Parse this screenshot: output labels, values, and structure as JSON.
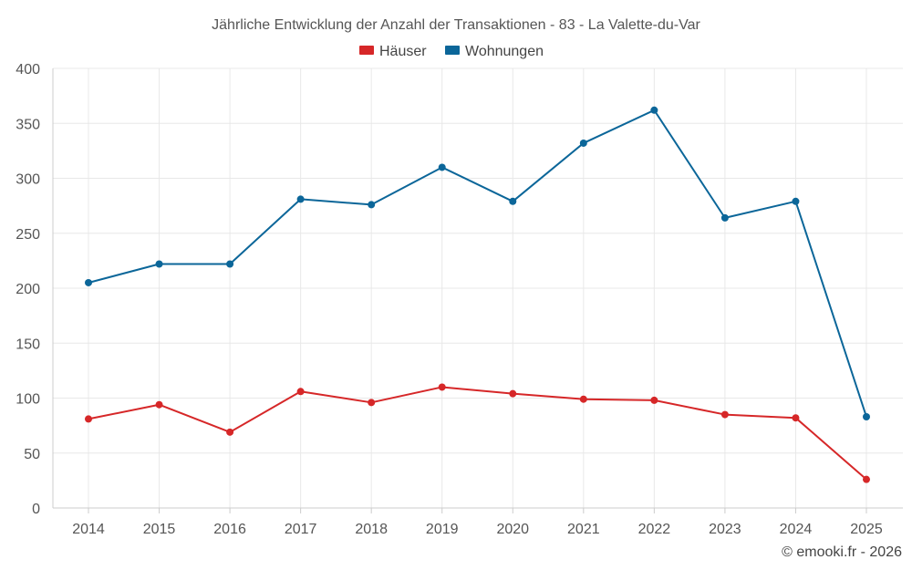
{
  "chart_data": {
    "type": "line",
    "title": "Jährliche Entwicklung der Anzahl der Transaktionen - 83 - La Valette-du-Var",
    "categories": [
      "2014",
      "2015",
      "2016",
      "2017",
      "2018",
      "2019",
      "2020",
      "2021",
      "2022",
      "2023",
      "2024",
      "2025"
    ],
    "series": [
      {
        "name": "Häuser",
        "color": "#d62728",
        "values": [
          81,
          94,
          69,
          106,
          96,
          110,
          104,
          99,
          98,
          85,
          82,
          26
        ]
      },
      {
        "name": "Wohnungen",
        "color": "#0b6699",
        "values": [
          205,
          222,
          222,
          281,
          276,
          310,
          279,
          332,
          362,
          264,
          279,
          83
        ]
      }
    ],
    "ylim": [
      0,
      400
    ],
    "yticks": [
      0,
      50,
      100,
      150,
      200,
      250,
      300,
      350,
      400
    ],
    "grid": true,
    "legend": "top-center",
    "xlabel": "",
    "ylabel": "",
    "credit": "© emooki.fr - 2026"
  }
}
